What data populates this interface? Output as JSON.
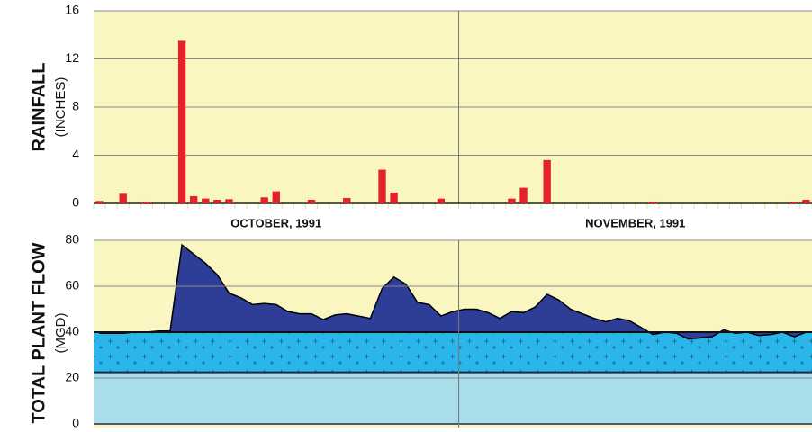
{
  "chart_data": [
    {
      "type": "bar",
      "y_label": "RAINFALL",
      "y_label_sub": "(INCHES)",
      "color": "#e52229",
      "background": "#faf6c2",
      "groups": [
        {
          "label": "OCTOBER, 1991",
          "values": [
            0.2,
            0,
            0.8,
            0,
            0.15,
            0,
            0,
            13.5,
            0.6,
            0.4,
            0.3,
            0.35,
            0,
            0,
            0.5,
            1.0,
            0,
            0,
            0.3,
            0,
            0,
            0.45,
            0,
            0,
            2.8,
            0.9,
            0,
            0,
            0,
            0.4,
            0
          ]
        },
        {
          "label": "NOVEMBER, 1991",
          "values": [
            0,
            0,
            0,
            0,
            0.4,
            1.3,
            0,
            3.6,
            0,
            0,
            0,
            0,
            0,
            0,
            0,
            0,
            0.15,
            0,
            0,
            0,
            0,
            0,
            0,
            0,
            0,
            0,
            0,
            0,
            0.15,
            0.3
          ]
        }
      ],
      "ylim": [
        0,
        16
      ],
      "yticks": [
        0,
        4,
        8,
        12,
        16
      ],
      "grid": true
    },
    {
      "type": "area",
      "y_label": "TOTAL PLANT FLOW",
      "y_label_sub": "(MGD)",
      "color": "#2e3d96",
      "background": "#faf6c2",
      "baseline": 40,
      "values": [
        39.5,
        39.5,
        39.5,
        40,
        40,
        40.5,
        40.5,
        78,
        74,
        70,
        65,
        57,
        55,
        52,
        52.5,
        52,
        49,
        48,
        48,
        45.5,
        47.5,
        48,
        47,
        46,
        59,
        64,
        61,
        53,
        52,
        47,
        49,
        50,
        50,
        48.5,
        46,
        49,
        48.5,
        51,
        56.5,
        54,
        50,
        48,
        46,
        44.5,
        46,
        45,
        42,
        39,
        40,
        39.5,
        37,
        37.5,
        38,
        41,
        39.5,
        40,
        38.5,
        39,
        40,
        38,
        40
      ],
      "bands": [
        {
          "from": 0,
          "to": 22.5,
          "color": "#a9dde9"
        },
        {
          "from": 22.5,
          "to": 40,
          "color": "#2ab6ea"
        }
      ],
      "ylim": [
        0,
        80
      ],
      "yticks": [
        0,
        20,
        40,
        60,
        80
      ],
      "grid": true
    }
  ]
}
